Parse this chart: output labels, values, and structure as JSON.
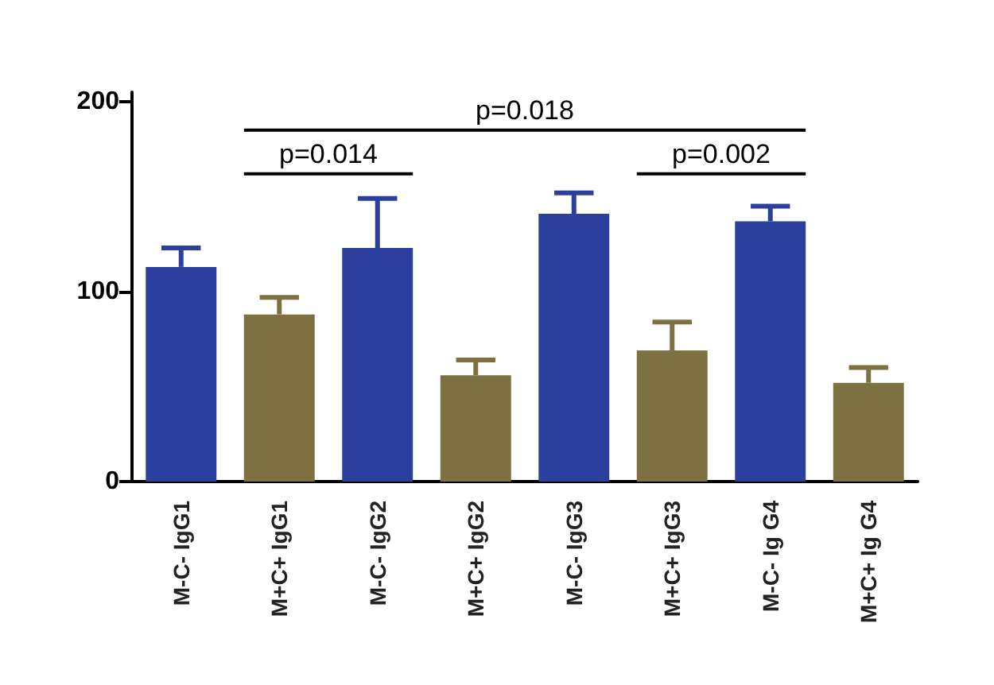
{
  "chart_data": {
    "type": "bar",
    "categories": [
      "M-C- IgG1",
      "M+C+ IgG1",
      "M-C- IgG2",
      "M+C+ IgG2",
      "M-C- IgG3",
      "M+C+ IgG3",
      "M-C- Ig G4",
      "M+C+ Ig G4"
    ],
    "values": [
      113,
      88,
      123,
      56,
      141,
      69,
      137,
      52
    ],
    "colors": [
      "#2b3f9c",
      "#7d7142",
      "#2b3f9c",
      "#7d7142",
      "#2b3f9c",
      "#7d7142",
      "#2b3f9c",
      "#7d7142"
    ],
    "errors": [
      [
        113,
        123
      ],
      [
        88,
        97
      ],
      [
        123,
        149
      ],
      [
        56,
        64
      ],
      [
        141,
        152
      ],
      [
        69,
        84
      ],
      [
        137,
        145
      ],
      [
        52,
        60
      ]
    ],
    "ylim": [
      0,
      205
    ],
    "yticks": [
      0,
      100,
      200
    ],
    "grid": false,
    "annotations": [
      "p=0.018",
      "p=0.014",
      "p=0.002"
    ]
  }
}
